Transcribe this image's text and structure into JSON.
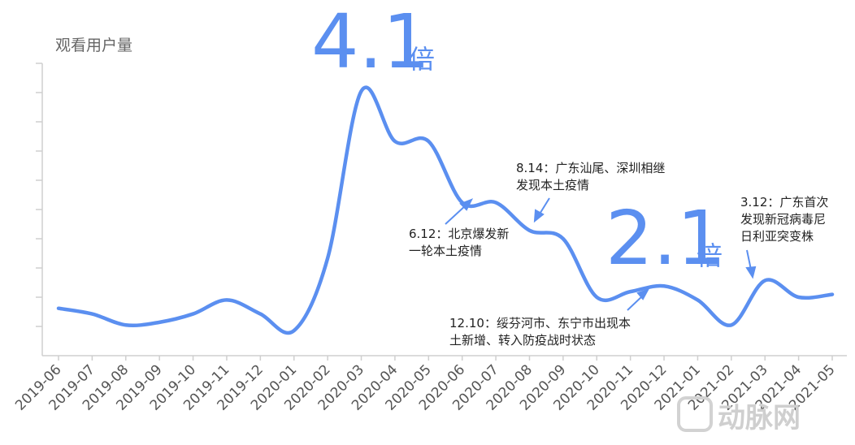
{
  "chart_data": {
    "type": "line",
    "title": "",
    "ylabel": "观看用户量",
    "xlabel": "",
    "categories": [
      "2019-06",
      "2019-07",
      "2019-08",
      "2019-09",
      "2019-10",
      "2019-11",
      "2019-12",
      "2020-01",
      "2020-02",
      "2020-03",
      "2020-04",
      "2020-05",
      "2020-06",
      "2020-07",
      "2020-08",
      "2020-09",
      "2020-10",
      "2020-11",
      "2020-12",
      "2021-01",
      "2021-02",
      "2021-03",
      "2021-04",
      "2021-05"
    ],
    "series": [
      {
        "values": [
          1.7,
          1.5,
          1.1,
          1.2,
          1.5,
          2.0,
          1.5,
          0.9,
          3.5,
          9.5,
          7.7,
          7.7,
          5.5,
          5.5,
          4.5,
          4.2,
          2.1,
          2.3,
          2.5,
          2.0,
          1.1,
          2.7,
          2.1,
          2.2
        ]
      }
    ],
    "ylim": [
      0,
      10.5
    ],
    "grid": false,
    "line_color": "#5b8ff0",
    "callouts": [
      {
        "value": "4.1",
        "unit": "倍"
      },
      {
        "value": "2.1",
        "unit": "倍"
      }
    ],
    "annotations": [
      {
        "lines": [
          "6.12：北京爆发新",
          "一轮本土疫情"
        ]
      },
      {
        "lines": [
          "8.14：广东汕尾、深圳相继",
          "发现本土疫情"
        ]
      },
      {
        "lines": [
          "12.10：绥芬河市、东宁市出现本",
          "土新增、转入防疫战时状态"
        ]
      },
      {
        "lines": [
          "3.12：广东首次",
          "发现新冠病毒尼",
          "日利亚突变株"
        ]
      }
    ]
  },
  "watermark": "动脉网"
}
